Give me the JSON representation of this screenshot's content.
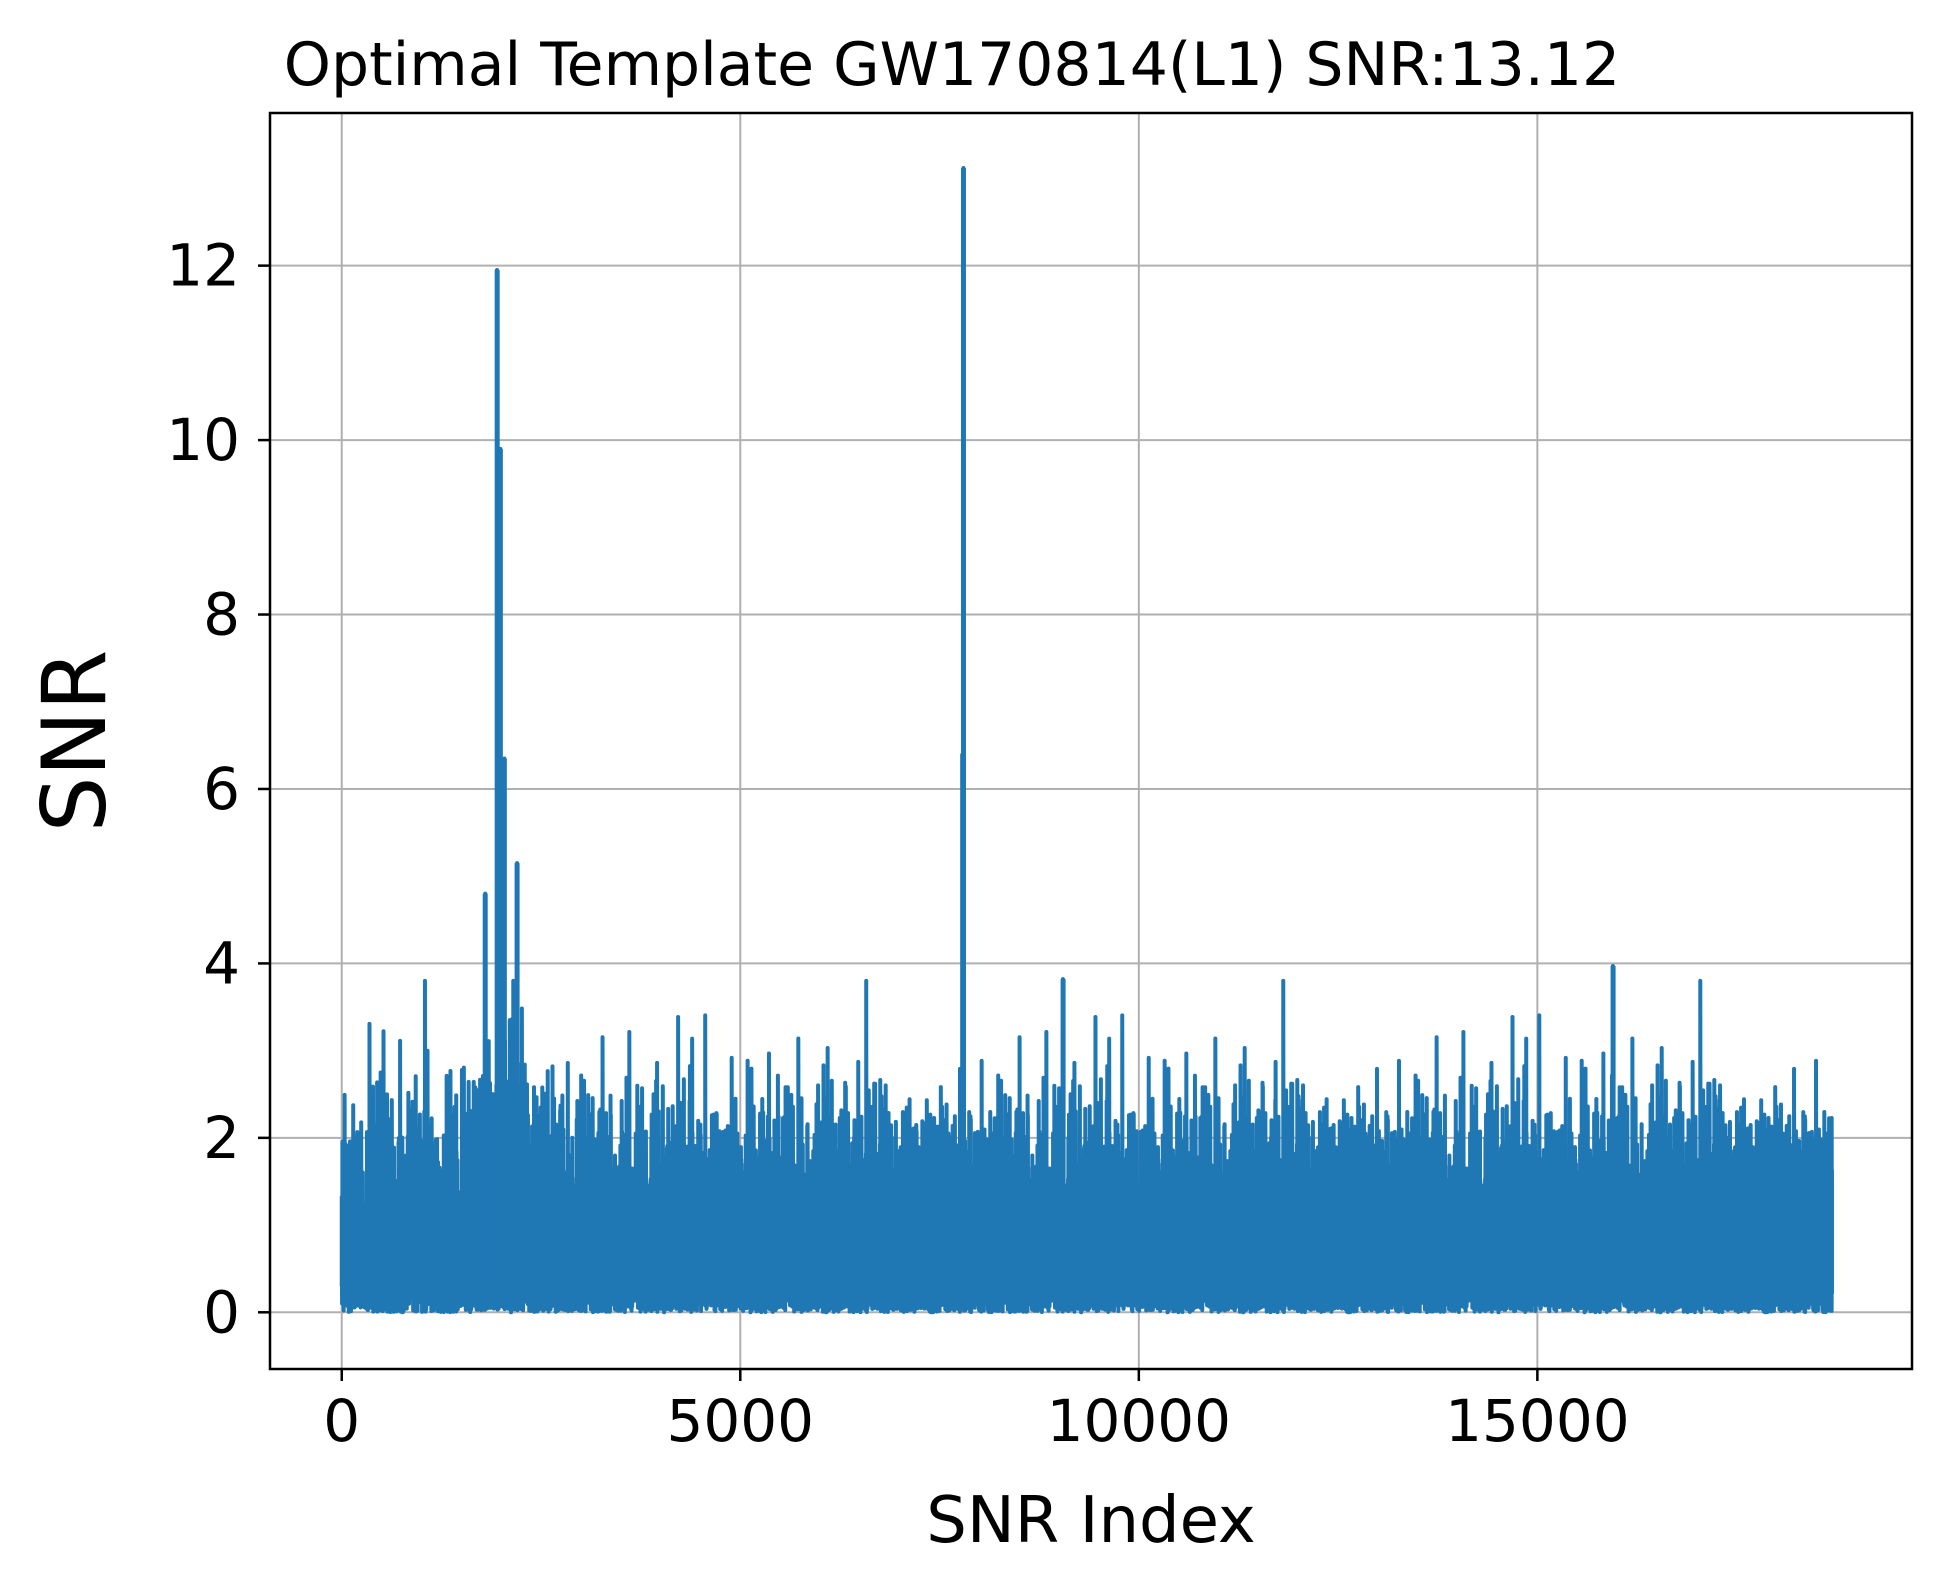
{
  "chart_data": {
    "type": "line",
    "title": "Optimal Template GW170814(L1) SNR:13.12",
    "xlabel": "SNR Index",
    "ylabel": "SNR",
    "xlim": [
      -900,
      19700
    ],
    "ylim": [
      -0.65,
      13.75
    ],
    "xticks": [
      0,
      5000,
      10000,
      15000
    ],
    "xtick_labels": [
      "0",
      "5000",
      "10000",
      "15000"
    ],
    "yticks": [
      0,
      2,
      4,
      6,
      8,
      10,
      12
    ],
    "ytick_labels": [
      "0",
      "2",
      "4",
      "6",
      "8",
      "10",
      "12"
    ],
    "grid": true,
    "n_points": 18700,
    "series": [
      {
        "color": "#1f77b4",
        "noise_floor": {
          "min": 0.0,
          "max_typical": 3.8
        },
        "peaks": [
          {
            "x": 1950,
            "y": 11.95
          },
          {
            "x": 1990,
            "y": 9.9
          },
          {
            "x": 2040,
            "y": 6.35
          },
          {
            "x": 2200,
            "y": 5.15
          },
          {
            "x": 1800,
            "y": 4.8
          },
          {
            "x": 7800,
            "y": 13.12
          },
          {
            "x": 7790,
            "y": 6.4
          },
          {
            "x": 9050,
            "y": 3.82
          },
          {
            "x": 15950,
            "y": 3.97
          }
        ]
      }
    ]
  }
}
